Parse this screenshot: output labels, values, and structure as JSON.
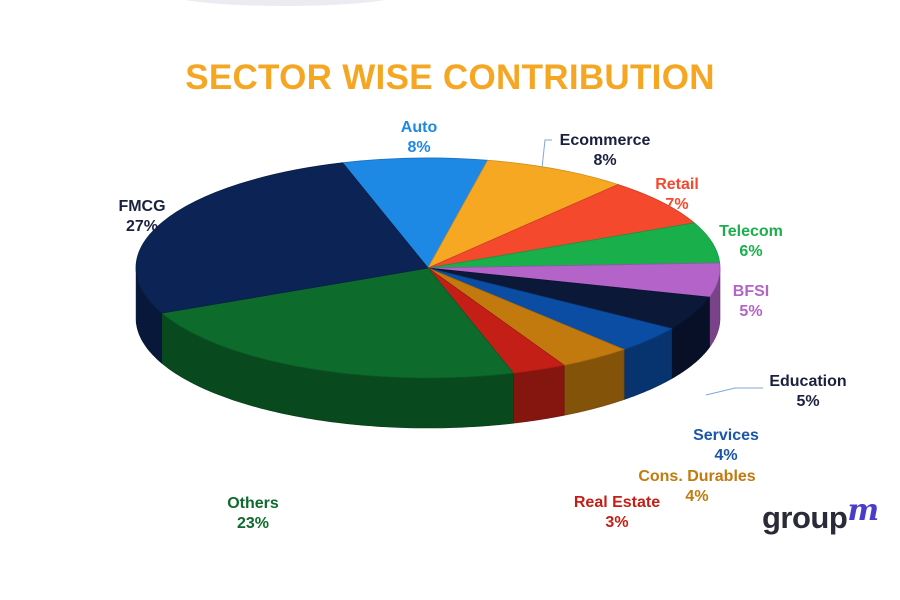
{
  "chart_data": {
    "type": "pie",
    "title": "SECTOR WISE CONTRIBUTION",
    "slices": [
      {
        "label": "Auto",
        "value": 8,
        "value_label": "8%",
        "color": "#1E88E5"
      },
      {
        "label": "Ecommerce",
        "value": 8,
        "value_label": "8%",
        "color": "#F7A823"
      },
      {
        "label": "Retail",
        "value": 7,
        "value_label": "7%",
        "color": "#F4492C"
      },
      {
        "label": "Telecom",
        "value": 6,
        "value_label": "6%",
        "color": "#19B04B"
      },
      {
        "label": "BFSI",
        "value": 5,
        "value_label": "5%",
        "color": "#B463C9"
      },
      {
        "label": "Education",
        "value": 5,
        "value_label": "5%",
        "color": "#0B1838"
      },
      {
        "label": "Services",
        "value": 4,
        "value_label": "4%",
        "color": "#0A4DA2"
      },
      {
        "label": "Cons. Durables",
        "value": 4,
        "value_label": "4%",
        "color": "#C27A0E"
      },
      {
        "label": "Real Estate",
        "value": 3,
        "value_label": "3%",
        "color": "#C41F16"
      },
      {
        "label": "Others",
        "value": 23,
        "value_label": "23%",
        "color": "#0D6B2C"
      },
      {
        "label": "FMCG",
        "value": 27,
        "value_label": "27%",
        "color": "#0B2455"
      }
    ],
    "label_colors": {
      "Auto": "#1E88E5",
      "Ecommerce": "#1A2140",
      "Retail": "#F4492C",
      "Telecom": "#19B04B",
      "BFSI": "#B463C9",
      "Education": "#1A2140",
      "Services": "#1A56A8",
      "Cons. Durables": "#C27A0E",
      "Real Estate": "#C41F16",
      "Others": "#0D6B2C",
      "FMCG": "#1A2140"
    },
    "title_color": "#F5A623"
  },
  "brand": {
    "logo_text": "group",
    "logo_mark": "m"
  }
}
